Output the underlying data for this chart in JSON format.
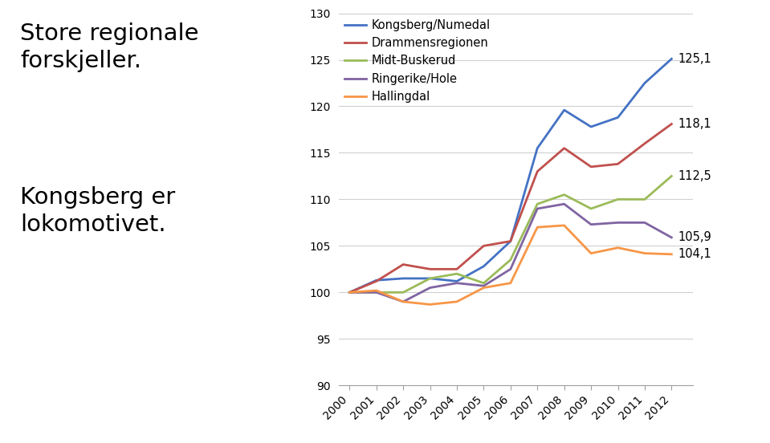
{
  "years": [
    2000,
    2001,
    2002,
    2003,
    2004,
    2005,
    2006,
    2007,
    2008,
    2009,
    2010,
    2011,
    2012
  ],
  "series": {
    "Kongsberg/Numedal": {
      "color": "#4472C4",
      "values": [
        100.0,
        101.3,
        101.5,
        101.5,
        101.2,
        102.8,
        105.5,
        115.5,
        119.6,
        117.8,
        118.8,
        122.5,
        125.1
      ]
    },
    "Drammensregionen": {
      "color": "#C0504D",
      "values": [
        100.0,
        101.2,
        103.0,
        102.5,
        102.5,
        105.0,
        105.5,
        113.0,
        115.5,
        113.5,
        113.8,
        116.0,
        118.1
      ]
    },
    "Midt-Buskerud": {
      "color": "#9BBB59",
      "values": [
        100.0,
        100.0,
        100.0,
        101.5,
        102.0,
        101.0,
        103.5,
        109.5,
        110.5,
        109.0,
        110.0,
        110.0,
        112.5
      ]
    },
    "Ringerike/Hole": {
      "color": "#8064A2",
      "values": [
        100.0,
        100.0,
        99.0,
        100.5,
        101.0,
        100.7,
        102.5,
        109.0,
        109.5,
        107.3,
        107.5,
        107.5,
        105.9
      ]
    },
    "Hallingdal": {
      "color": "#F79646",
      "values": [
        100.0,
        100.2,
        99.0,
        98.7,
        99.0,
        100.5,
        101.0,
        107.0,
        107.2,
        104.2,
        104.8,
        104.2,
        104.1
      ]
    }
  },
  "end_labels": {
    "Kongsberg/Numedal": "125,1",
    "Drammensregionen": "118,1",
    "Midt-Buskerud": "112,5",
    "Ringerike/Hole": "105,9",
    "Hallingdal": "104,1"
  },
  "legend_order": [
    "Kongsberg/Numedal",
    "Drammensregionen",
    "Midt-Buskerud",
    "Ringerike/Hole",
    "Hallingdal"
  ],
  "ylim": [
    90,
    130
  ],
  "yticks": [
    90,
    95,
    100,
    105,
    110,
    115,
    120,
    125,
    130
  ],
  "left_text_block1": "Store regionale\nforskjeller.",
  "left_text_block2": "Kongsberg er\nlokomotivet.",
  "background_color": "#ffffff",
  "grid_color": "#d0d0d0",
  "line_width": 2.0,
  "font_size_legend": 10.5,
  "font_size_ticks": 10,
  "font_size_left_text": 21
}
